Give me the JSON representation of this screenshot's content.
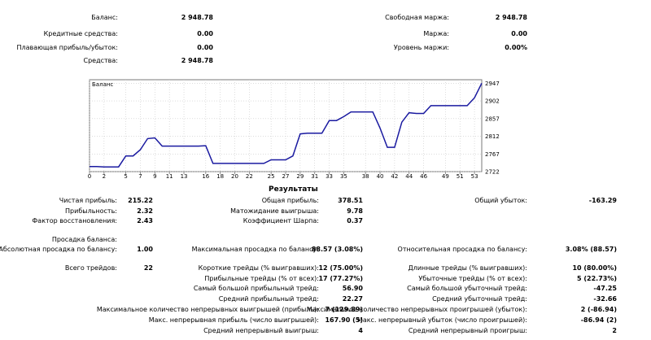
{
  "summary": {
    "balance_label": "Баланс:",
    "balance_value": "2 948.78",
    "credit_label": "Кредитные средства:",
    "credit_value": "0.00",
    "floating_label": "Плавающая прибыль/убыток:",
    "floating_value": "0.00",
    "equity_label": "Средства:",
    "equity_value": "2 948.78",
    "free_margin_label": "Свободная маржа:",
    "free_margin_value": "2 948.78",
    "margin_label": "Маржа:",
    "margin_value": "0.00",
    "margin_level_label": "Уровень маржи:",
    "margin_level_value": "0.00%"
  },
  "chart_data": {
    "type": "line",
    "title": "Баланс",
    "x_ticks": [
      0,
      2,
      5,
      7,
      9,
      11,
      13,
      16,
      18,
      20,
      22,
      25,
      27,
      29,
      31,
      33,
      35,
      38,
      40,
      42,
      44,
      46,
      49,
      51,
      53
    ],
    "y_ticks": [
      2722,
      2767,
      2812,
      2857,
      2902,
      2947
    ],
    "ylim": [
      2722,
      2956
    ],
    "xlim": [
      0,
      54
    ],
    "series": [
      {
        "color": "#1a1aa0",
        "x": [
          0,
          1,
          2,
          3,
          4,
          5,
          6,
          7,
          8,
          9,
          10,
          11,
          12,
          13,
          14,
          15,
          16,
          17,
          18,
          19,
          20,
          21,
          22,
          23,
          24,
          25,
          26,
          27,
          28,
          29,
          30,
          31,
          32,
          33,
          34,
          35,
          36,
          37,
          38,
          39,
          40,
          41,
          42,
          43,
          44,
          45,
          46,
          47,
          48,
          49,
          50,
          51,
          52,
          53,
          54
        ],
        "y": [
          2735,
          2735,
          2734,
          2734,
          2734,
          2762,
          2762,
          2778,
          2806,
          2808,
          2787,
          2787,
          2787,
          2787,
          2787,
          2787,
          2788,
          2743,
          2743,
          2743,
          2743,
          2743,
          2743,
          2743,
          2743,
          2752,
          2752,
          2752,
          2762,
          2818,
          2820,
          2820,
          2820,
          2852,
          2852,
          2862,
          2874,
          2874,
          2874,
          2874,
          2833,
          2784,
          2784,
          2848,
          2872,
          2870,
          2870,
          2890,
          2890,
          2890,
          2890,
          2890,
          2890,
          2910,
          2947
        ]
      }
    ]
  },
  "results": {
    "title": "Результаты",
    "net_profit_label": "Чистая прибыль:",
    "net_profit_value": "215.22",
    "gross_profit_label": "Общая прибыль:",
    "gross_profit_value": "378.51",
    "gross_loss_label": "Общий убыток:",
    "gross_loss_value": "-163.29",
    "profitability_label": "Прибыльность:",
    "profitability_value": "2.32",
    "expected_payoff_label": "Матожидание выигрыша:",
    "expected_payoff_value": "9.78",
    "recovery_label": "Фактор восстановления:",
    "recovery_value": "2.43",
    "sharpe_label": "Коэффициент Шарпа:",
    "sharpe_value": "0.37",
    "drawdown_heading": "Просадка баланса:",
    "abs_dd_label": "Абсолютная просадка по балансу:",
    "abs_dd_value": "1.00",
    "max_dd_label": "Максимальная просадка по балансу:",
    "max_dd_value": "88.57 (3.08%)",
    "rel_dd_label": "Относительная просадка по балансу:",
    "rel_dd_value": "3.08% (88.57)",
    "total_trades_label": "Всего трейдов:",
    "total_trades_value": "22",
    "short_trades_label": "Короткие трейды (% выигравших):",
    "short_trades_value": "12 (75.00%)",
    "long_trades_label": "Длинные трейды (% выигравших):",
    "long_trades_value": "10 (80.00%)",
    "profit_trades_label": "Прибыльные трейды (% от всех):",
    "profit_trades_value": "17 (77.27%)",
    "loss_trades_label": "Убыточные трейды (% от всех):",
    "loss_trades_value": "5 (22.73%)",
    "largest_profit_label": "Самый большой прибыльный трейд:",
    "largest_profit_value": "56.90",
    "largest_loss_label": "Самый большой убыточный трейд:",
    "largest_loss_value": "-47.25",
    "avg_profit_label": "Средний прибыльный трейд:",
    "avg_profit_value": "22.27",
    "avg_loss_label": "Средний убыточный трейд:",
    "avg_loss_value": "-32.66",
    "max_consec_wins_label": "Максимальное количество непрерывных выигрышей (прибыль):",
    "max_consec_wins_value": "7 (129.89)",
    "max_consec_losses_label": "Максимальное количество непрерывных проигрышей (убыток):",
    "max_consec_losses_value": "2 (-86.94)",
    "max_consec_profit_label": "Макс. непрерывная прибыль (число выигрышей):",
    "max_consec_profit_value": "167.90 (5)",
    "max_consec_loss_label": "Макс. непрерывный убыток (число проигрышей):",
    "max_consec_loss_value": "-86.94 (2)",
    "avg_consec_wins_label": "Средний непрерывный выигрыш:",
    "avg_consec_wins_value": "4",
    "avg_consec_losses_label": "Средний непрерывный проигрыш:",
    "avg_consec_losses_value": "2"
  }
}
